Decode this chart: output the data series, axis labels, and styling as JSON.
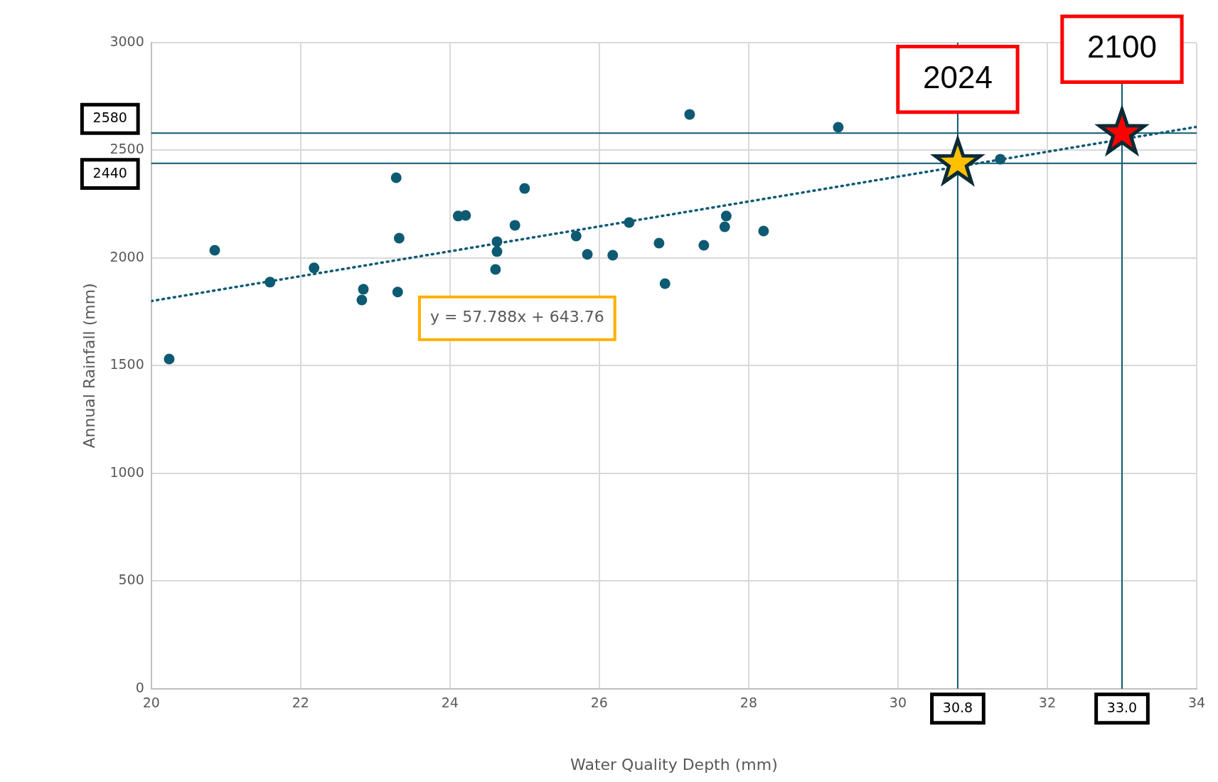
{
  "chart_data": {
    "type": "scatter",
    "xlabel": "Water Quality Depth (mm)",
    "ylabel": "Annual Rainfall (mm)",
    "xlim": [
      20,
      34
    ],
    "xticks": [
      20,
      22,
      24,
      26,
      28,
      30,
      32,
      34
    ],
    "ylim": [
      0,
      3000
    ],
    "yticks": [
      0,
      500,
      1000,
      1500,
      2000,
      2500,
      3000
    ],
    "grid": true,
    "legend": false,
    "marker": "circle",
    "series": [
      {
        "color": "#0e5a73",
        "x": [
          20.24,
          20.85,
          21.59,
          22.18,
          22.82,
          22.84,
          23.28,
          23.32,
          23.3,
          24.11,
          24.21,
          24.61,
          24.63,
          24.63,
          24.87,
          25.0,
          25.69,
          25.84,
          26.18,
          26.4,
          26.8,
          26.88,
          27.21,
          27.4,
          27.68,
          27.7,
          28.2,
          29.2,
          31.37
        ],
        "values": [
          1531,
          2036,
          1888,
          1954,
          1805,
          1855,
          2373,
          2092,
          1842,
          2195,
          2198,
          1947,
          2076,
          2030,
          2152,
          2323,
          2102,
          2017,
          2013,
          2165,
          2069,
          1881,
          2667,
          2059,
          2145,
          2195,
          2125,
          2607,
          2459
        ]
      },
      {
        "type": "line",
        "color": "#0e5a73",
        "marker": "none",
        "line_style": "dotted",
        "x": [
          20,
          34
        ],
        "values": [
          1800,
          2609
        ]
      },
      {
        "type": "scatter",
        "marker": "star",
        "colors": [
          "#ffc000",
          "#ff0000"
        ],
        "x": [
          30.8,
          33.0
        ],
        "values": [
          2440,
          2580
        ]
      }
    ],
    "ref_lines": [
      {
        "axis": "y",
        "value": 2580,
        "label": "2580",
        "color": "#0e5a73",
        "line_style": "solid"
      },
      {
        "axis": "y",
        "value": 2440,
        "label": "2440",
        "color": "#0e5a73",
        "line_style": "solid"
      },
      {
        "axis": "x",
        "value": 30.8,
        "label": "30.8",
        "color": "#0e5a73",
        "line_style": "solid"
      },
      {
        "axis": "x",
        "value": 33.0,
        "label": "33.0",
        "color": "#0e5a73",
        "line_style": "solid"
      }
    ],
    "annotations": [
      {
        "text": "2024",
        "x": 30.8,
        "y": 2440
      },
      {
        "text": "2100",
        "x": 33.0,
        "y": 2580
      },
      "y = 57.788x + 643.76"
    ]
  }
}
